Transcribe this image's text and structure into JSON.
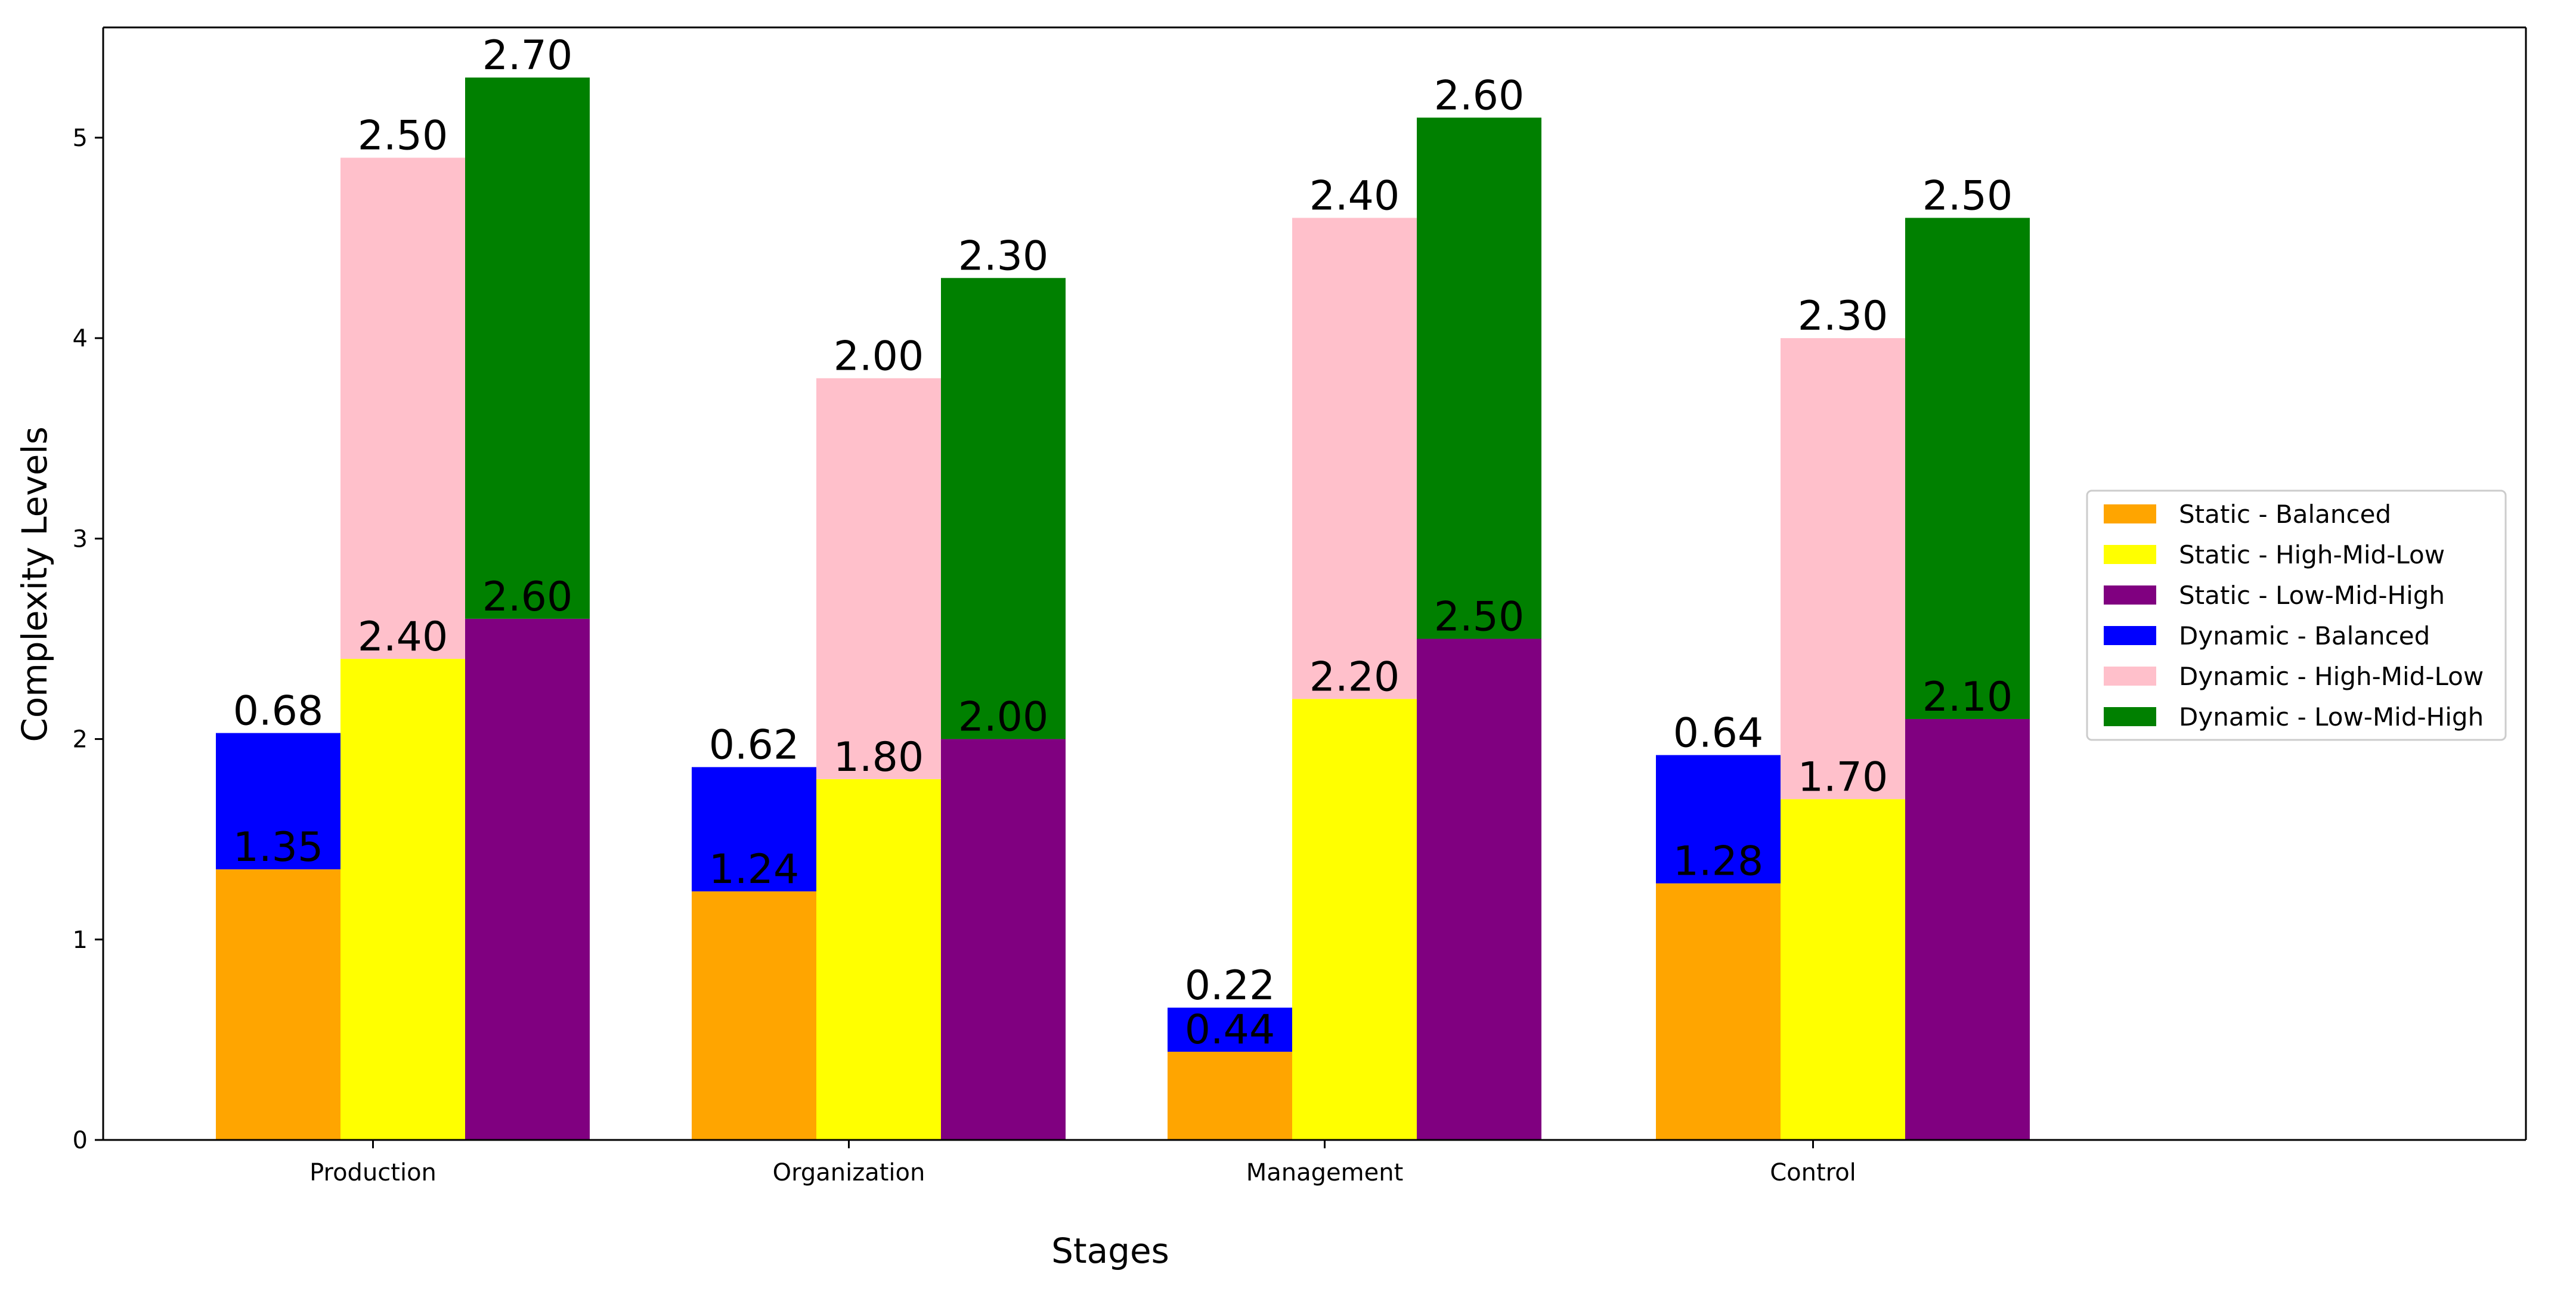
{
  "chart_data": {
    "type": "bar",
    "stacked_groups": true,
    "title": "",
    "xlabel": "Stages",
    "ylabel": "Complexity Levels",
    "categories": [
      "Production",
      "Organization",
      "Management",
      "Control"
    ],
    "ylim": [
      0,
      5.55
    ],
    "yticks": [
      "0",
      "1",
      "2",
      "3",
      "4",
      "5"
    ],
    "grid": false,
    "legend_position": "right",
    "series": [
      {
        "name": "Static - Balanced",
        "group": "Balanced",
        "layer": "Static",
        "color": "#FFA500",
        "values": [
          1.35,
          1.24,
          0.44,
          1.28
        ],
        "labels": [
          "1.35",
          "1.24",
          "0.44",
          "1.28"
        ]
      },
      {
        "name": "Static - High-Mid-Low",
        "group": "High-Mid-Low",
        "layer": "Static",
        "color": "#FFFF00",
        "values": [
          2.4,
          1.8,
          2.2,
          1.7
        ],
        "labels": [
          "2.40",
          "1.80",
          "2.20",
          "1.70"
        ]
      },
      {
        "name": "Static - Low-Mid-High",
        "group": "Low-Mid-High",
        "layer": "Static",
        "color": "#800080",
        "values": [
          2.6,
          2.0,
          2.5,
          2.1
        ],
        "labels": [
          "2.60",
          "2.00",
          "2.50",
          "2.10"
        ]
      },
      {
        "name": "Dynamic - Balanced",
        "group": "Balanced",
        "layer": "Dynamic",
        "color": "#0000FF",
        "values": [
          0.68,
          0.62,
          0.22,
          0.64
        ],
        "labels": [
          "0.68",
          "0.62",
          "0.22",
          "0.64"
        ]
      },
      {
        "name": "Dynamic - High-Mid-Low",
        "group": "High-Mid-Low",
        "layer": "Dynamic",
        "color": "#FFC0CB",
        "values": [
          2.5,
          2.0,
          2.4,
          2.3
        ],
        "labels": [
          "2.50",
          "2.00",
          "2.40",
          "2.30"
        ]
      },
      {
        "name": "Dynamic - Low-Mid-High",
        "group": "Low-Mid-High",
        "layer": "Dynamic",
        "color": "#008000",
        "values": [
          2.7,
          2.3,
          2.6,
          2.5
        ],
        "labels": [
          "2.70",
          "2.30",
          "2.60",
          "2.50"
        ]
      }
    ]
  }
}
